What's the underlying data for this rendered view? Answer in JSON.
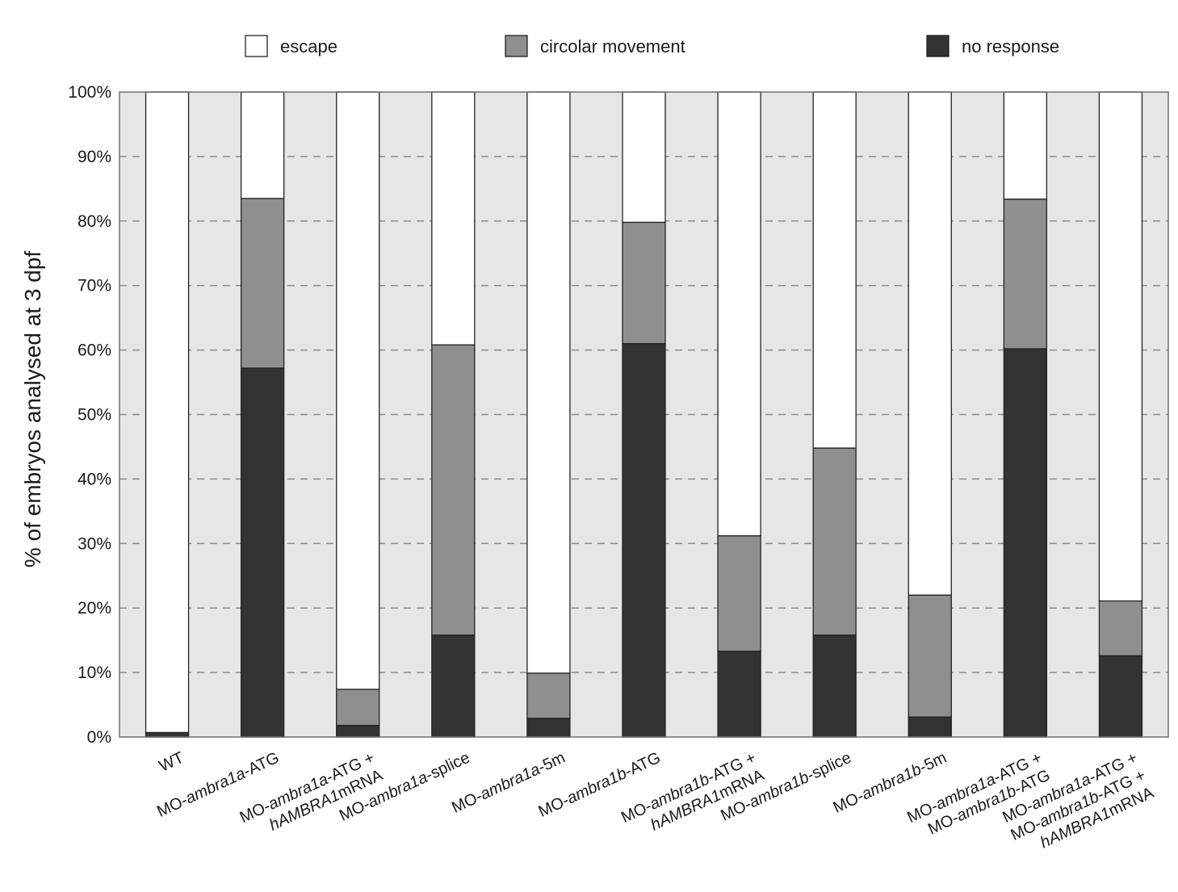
{
  "chart_data": {
    "type": "bar",
    "stacked": true,
    "orientation": "vertical",
    "title": "",
    "xlabel": "",
    "ylabel": "% of embryos analysed at 3 dpf",
    "ylim": [
      0,
      100
    ],
    "yticks": [
      "0%",
      "10%",
      "20%",
      "30%",
      "40%",
      "50%",
      "60%",
      "70%",
      "80%",
      "90%",
      "100%"
    ],
    "grid": "horizontal dashed",
    "legend_position": "top",
    "categories": [
      [
        {
          "t": "WT"
        }
      ],
      [
        {
          "t": "MO-"
        },
        {
          "t": "ambra1a",
          "i": true
        },
        {
          "t": "-ATG"
        }
      ],
      [
        {
          "t": "MO-"
        },
        {
          "t": "ambra1a",
          "i": true
        },
        {
          "t": "-ATG +"
        }
      ],
      [
        {
          "t": "MO-"
        },
        {
          "t": "ambra1a",
          "i": true
        },
        {
          "t": "-splice"
        }
      ],
      [
        {
          "t": "MO-"
        },
        {
          "t": "ambra1a",
          "i": true
        },
        {
          "t": "-5m"
        }
      ],
      [
        {
          "t": "MO-"
        },
        {
          "t": "ambra1b",
          "i": true
        },
        {
          "t": "-ATG"
        }
      ],
      [
        {
          "t": "MO-"
        },
        {
          "t": "ambra1b",
          "i": true
        },
        {
          "t": "-ATG +"
        }
      ],
      [
        {
          "t": "MO-"
        },
        {
          "t": "ambra1b",
          "i": true
        },
        {
          "t": "-splice"
        }
      ],
      [
        {
          "t": "MO-"
        },
        {
          "t": "ambra1b",
          "i": true
        },
        {
          "t": "-5m"
        }
      ],
      [
        {
          "t": "MO-"
        },
        {
          "t": "ambra1a",
          "i": true
        },
        {
          "t": "-ATG +"
        }
      ],
      [
        {
          "t": "MO-"
        },
        {
          "t": "ambra1a",
          "i": true
        },
        {
          "t": "-ATG +"
        }
      ]
    ],
    "category_lines": [
      [
        [
          {
            "t": "WT"
          }
        ]
      ],
      [
        [
          {
            "t": "MO-"
          },
          {
            "t": "ambra1a",
            "i": true
          },
          {
            "t": "-ATG"
          }
        ]
      ],
      [
        [
          {
            "t": "MO-"
          },
          {
            "t": "ambra1a",
            "i": true
          },
          {
            "t": "-ATG +"
          }
        ],
        [
          {
            "t": "hAMBRA1",
            "i": true
          },
          {
            "t": "mRNA"
          }
        ]
      ],
      [
        [
          {
            "t": "MO-"
          },
          {
            "t": "ambra1a",
            "i": true
          },
          {
            "t": "-splice"
          }
        ]
      ],
      [
        [
          {
            "t": "MO-"
          },
          {
            "t": "ambra1a",
            "i": true
          },
          {
            "t": "-5m"
          }
        ]
      ],
      [
        [
          {
            "t": "MO-"
          },
          {
            "t": "ambra1b",
            "i": true
          },
          {
            "t": "-ATG"
          }
        ]
      ],
      [
        [
          {
            "t": "MO-"
          },
          {
            "t": "ambra1b",
            "i": true
          },
          {
            "t": "-ATG +"
          }
        ],
        [
          {
            "t": "hAMBRA1",
            "i": true
          },
          {
            "t": "mRNA"
          }
        ]
      ],
      [
        [
          {
            "t": "MO-"
          },
          {
            "t": "ambra1b",
            "i": true
          },
          {
            "t": "-splice"
          }
        ]
      ],
      [
        [
          {
            "t": "MO-"
          },
          {
            "t": "ambra1b",
            "i": true
          },
          {
            "t": "-5m"
          }
        ]
      ],
      [
        [
          {
            "t": "MO-"
          },
          {
            "t": "ambra1a",
            "i": true
          },
          {
            "t": "-ATG +"
          }
        ],
        [
          {
            "t": "MO-"
          },
          {
            "t": "ambra1b",
            "i": true
          },
          {
            "t": "-ATG"
          }
        ]
      ],
      [
        [
          {
            "t": "MO-"
          },
          {
            "t": "ambra1a",
            "i": true
          },
          {
            "t": "-ATG +"
          }
        ],
        [
          {
            "t": "MO-"
          },
          {
            "t": "ambra1b",
            "i": true
          },
          {
            "t": "-ATG +"
          }
        ],
        [
          {
            "t": "hAMBRA1",
            "i": true
          },
          {
            "t": "mRNA"
          }
        ]
      ]
    ],
    "series": [
      {
        "name": "no response",
        "color": "#333333",
        "values": [
          0.7,
          57.2,
          1.8,
          15.8,
          2.9,
          61.0,
          13.3,
          15.8,
          3.1,
          60.2,
          12.6
        ]
      },
      {
        "name": "circolar movement",
        "color": "#8f8f8f",
        "values": [
          0.0,
          26.3,
          5.6,
          45.0,
          7.0,
          18.8,
          17.9,
          29.0,
          18.9,
          23.2,
          8.5
        ]
      },
      {
        "name": "escape",
        "color": "#ffffff",
        "values": [
          99.3,
          16.5,
          92.6,
          39.2,
          90.1,
          20.2,
          68.8,
          55.2,
          78.0,
          16.6,
          78.9
        ]
      }
    ],
    "legend_order": [
      "escape",
      "circolar movement",
      "no response"
    ],
    "plot_background": "#e6e6e6"
  }
}
